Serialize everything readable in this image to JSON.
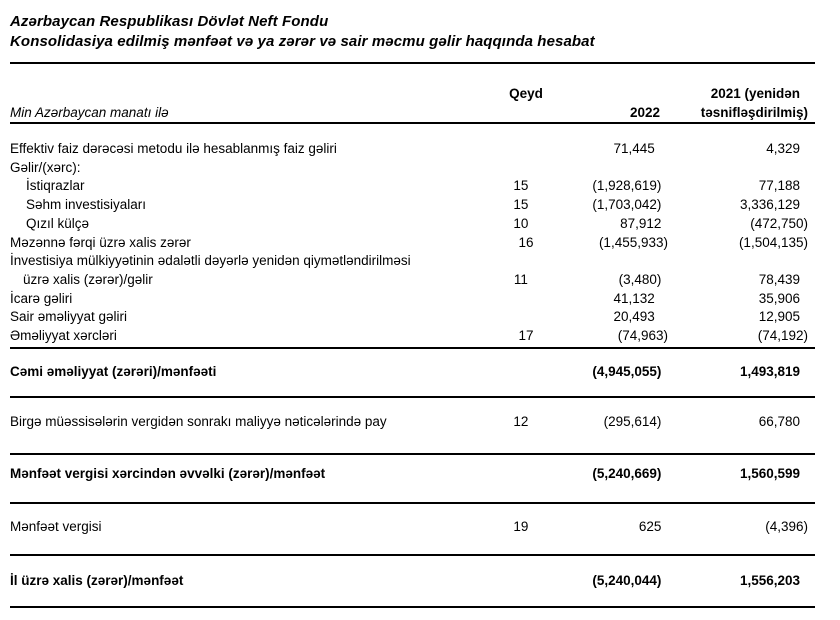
{
  "document": {
    "org_name": "Azərbaycan Respublikası Dövlət Neft Fondu",
    "report_title": "Konsolidasiya edilmiş mənfəət və ya zərər və sair məcmu gəlir haqqında hesabat"
  },
  "table": {
    "units_note": "Min Azərbaycan manatı ilə",
    "columns": {
      "note": "Qeyd",
      "y2022": "2022",
      "y2021_line1": "2021 (yenidən",
      "y2021_line2": "təsnifləşdirilmiş)"
    },
    "rows": [
      {
        "label": "Effektiv faiz dərəcəsi metodu ilə hesablanmış faiz gəliri",
        "y2022": "71,445",
        "y2021": "4,329"
      },
      {
        "label": "Gəlir/(xərc):"
      },
      {
        "label": "İstiqrazlar",
        "note": "15",
        "y2022": "(1,928,619)",
        "y2021": "77,188"
      },
      {
        "label": "Səhm investisiyaları",
        "note": "15",
        "y2022": "(1,703,042)",
        "y2021": "3,336,129"
      },
      {
        "label": "Qızıl külçə",
        "note": "10",
        "y2022": "87,912",
        "y2021": "(472,750)"
      },
      {
        "label": "Məzənnə fərqi üzrə xalis zərər",
        "note": "16",
        "y2022": "(1,455,933)",
        "y2021": "(1,504,135)"
      },
      {
        "label": "İnvestisiya mülkiyyətinin ədalətli dəyərlə yenidən qiymətləndirilməsi",
        "label2": "üzrə xalis (zərər)/gəlir",
        "note": "11",
        "y2022": "(3,480)",
        "y2021": "78,439"
      },
      {
        "label": "İcarə gəliri",
        "y2022": "41,132",
        "y2021": "35,906"
      },
      {
        "label": "Sair əməliyyat gəliri",
        "y2022": "20,493",
        "y2021": "12,905"
      },
      {
        "label": "Əməliyyat xərcləri",
        "note": "17",
        "y2022": "(74,963)",
        "y2021": "(74,192)"
      },
      {
        "label": "Cəmi əməliyyat (zərəri)/mənfəəti",
        "y2022": "(4,945,055)",
        "y2021": "1,493,819"
      },
      {
        "label": "Birgə müəssisələrin vergidən sonrakı maliyyə nəticələrində pay",
        "note": "12",
        "y2022": "(295,614)",
        "y2021": "66,780"
      },
      {
        "label": "Mənfəət vergisi xərcindən əvvəlki (zərər)/mənfəət",
        "y2022": "(5,240,669)",
        "y2021": "1,560,599"
      },
      {
        "label": "Mənfəət vergisi",
        "note": "19",
        "y2022": "625",
        "y2021": "(4,396)"
      },
      {
        "label": "İl üzrə xalis (zərər)/mənfəət",
        "y2022": "(5,240,044)",
        "y2021": "1,556,203"
      }
    ]
  }
}
